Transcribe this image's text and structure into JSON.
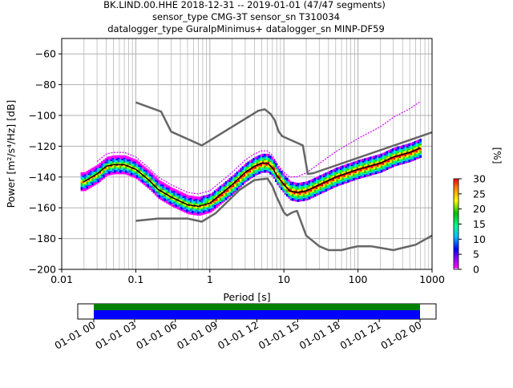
{
  "title": {
    "line1": "BK.LIND.00.HHE   2018-12-31 -- 2019-01-01  (47/47 segments)",
    "line2": "sensor_type CMG-3T sensor_sn T310034",
    "line3": "datalogger_type GuralpMinimus+ datalogger_sn MINP-DF59"
  },
  "colorbar": {
    "label": "[%]",
    "ticks": [
      "0",
      "5",
      "10",
      "15",
      "20",
      "25",
      "30"
    ],
    "range": [
      0,
      30
    ]
  },
  "timeline": {
    "tick_labels": [
      "01-01 00",
      "01-01 03",
      "01-01 06",
      "01-01 09",
      "01-01 12",
      "01-01 15",
      "01-01 18",
      "01-01 21",
      "01-02 00"
    ],
    "colors": {
      "top": "#008000",
      "bottom": "#0000ff"
    }
  },
  "colors": {
    "noise_model": "#666666",
    "mean_line": "#000000",
    "mode_band": "#cc00ff",
    "grid": "#b0b0b0"
  },
  "chart_data": {
    "type": "heatmap",
    "title": "BK.LIND.00.HHE   2018-12-31 -- 2019-01-01  (47/47 segments)",
    "xlabel": "Period [s]",
    "ylabel": "Power [m²/s⁴/Hz] [dB]",
    "xscale": "log",
    "xlim": [
      0.01,
      1000
    ],
    "ylim": [
      -200,
      -50
    ],
    "xticks": [
      0.01,
      0.1,
      1,
      10,
      100,
      1000
    ],
    "xtick_labels": [
      "0.01",
      "0.1",
      "1",
      "10",
      "100",
      "1000"
    ],
    "yticks": [
      -200,
      -180,
      -160,
      -140,
      -120,
      -100,
      -80,
      -60
    ],
    "ytick_labels": [
      "−200",
      "−180",
      "−160",
      "−140",
      "−120",
      "−100",
      "−80",
      "−60"
    ],
    "grid": true,
    "series": [
      {
        "x": [
          0.1,
          0.22,
          0.3,
          0.78,
          4.5,
          5.5,
          6.6,
          7.5,
          8.5,
          9.5,
          18,
          21,
          25,
          1000
        ],
        "y": [
          -91.5,
          -97.5,
          -110.5,
          -119.5,
          -97,
          -96,
          -99,
          -103,
          -110.5,
          -113.5,
          -119.5,
          -138,
          -137.5,
          -111
        ]
      },
      {
        "x": [
          0.1,
          0.2,
          0.3,
          0.5,
          0.78,
          1.2,
          2.5,
          4,
          6,
          7,
          8,
          10,
          11,
          13,
          15,
          17,
          20,
          30,
          40,
          50,
          60,
          80,
          100,
          150,
          200,
          300,
          600,
          1000
        ],
        "y": [
          -168.5,
          -167,
          -167,
          -167,
          -169,
          -163.5,
          -148.5,
          -142,
          -141,
          -146,
          -153,
          -163,
          -165,
          -163,
          -162,
          -169,
          -178,
          -185,
          -187.5,
          -187.5,
          -187.5,
          -186,
          -185,
          -185,
          -186,
          -187.5,
          -184,
          -178
        ]
      },
      {
        "x": [
          0.02,
          0.03,
          0.04,
          0.05,
          0.07,
          0.1,
          0.15,
          0.2,
          0.3,
          0.5,
          0.7,
          1,
          1.5,
          2,
          3,
          4,
          5,
          6,
          7,
          8,
          10,
          12,
          15,
          20,
          30,
          50,
          100,
          200,
          300,
          500,
          700
        ],
        "y": [
          -143,
          -138,
          -133,
          -132,
          -132,
          -135,
          -142,
          -148,
          -153,
          -158,
          -159,
          -157,
          -150,
          -145,
          -137,
          -133,
          -131,
          -131,
          -134,
          -139,
          -145,
          -149,
          -150,
          -149,
          -145,
          -140,
          -135,
          -131,
          -127,
          -124,
          -121
        ]
      }
    ]
  }
}
